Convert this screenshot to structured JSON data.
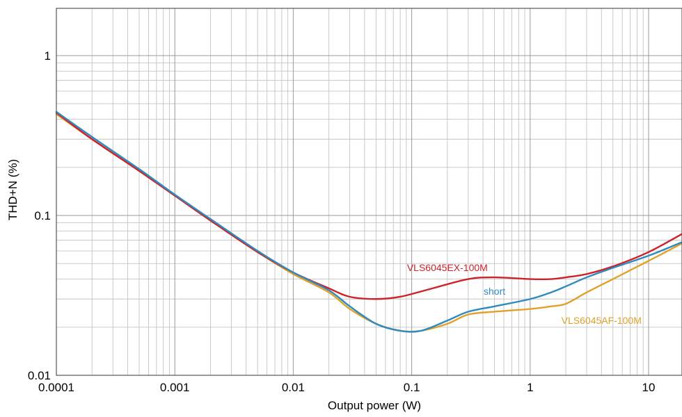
{
  "chart_data": {
    "type": "line",
    "xscale": "log",
    "yscale": "log",
    "xlim": [
      0.0001,
      20
    ],
    "ylim": [
      0.01,
      2
    ],
    "grid": true,
    "xlabel": "Output power (W)",
    "ylabel": "THD+N (%)",
    "x_ticks": [
      {
        "value": 0.0001,
        "label": "0.0001"
      },
      {
        "value": 0.001,
        "label": "0.001"
      },
      {
        "value": 0.01,
        "label": "0.01"
      },
      {
        "value": 0.1,
        "label": "0.1"
      },
      {
        "value": 1,
        "label": "1"
      },
      {
        "value": 10,
        "label": "10"
      }
    ],
    "y_ticks": [
      {
        "value": 0.01,
        "label": "0.01"
      },
      {
        "value": 0.1,
        "label": "0.1"
      },
      {
        "value": 1,
        "label": "1"
      }
    ],
    "series": [
      {
        "name": "VLS6045EX-100M",
        "color": "#cc2229",
        "label_at": [
          0.2,
          0.045
        ],
        "points": [
          [
            0.0001,
            0.44
          ],
          [
            0.0002,
            0.3
          ],
          [
            0.0005,
            0.19
          ],
          [
            0.001,
            0.133
          ],
          [
            0.002,
            0.093
          ],
          [
            0.005,
            0.059
          ],
          [
            0.01,
            0.044
          ],
          [
            0.02,
            0.035
          ],
          [
            0.03,
            0.031
          ],
          [
            0.05,
            0.03
          ],
          [
            0.08,
            0.031
          ],
          [
            0.15,
            0.035
          ],
          [
            0.3,
            0.04
          ],
          [
            0.5,
            0.041
          ],
          [
            1,
            0.04
          ],
          [
            1.5,
            0.04
          ],
          [
            2,
            0.041
          ],
          [
            3,
            0.043
          ],
          [
            5,
            0.048
          ],
          [
            10,
            0.059
          ],
          [
            20,
            0.078
          ]
        ]
      },
      {
        "name": "short",
        "color": "#2f8bbf",
        "label_at": [
          0.5,
          0.032
        ],
        "points": [
          [
            0.0001,
            0.445
          ],
          [
            0.0002,
            0.31
          ],
          [
            0.0005,
            0.195
          ],
          [
            0.001,
            0.135
          ],
          [
            0.002,
            0.095
          ],
          [
            0.005,
            0.06
          ],
          [
            0.01,
            0.044
          ],
          [
            0.02,
            0.034
          ],
          [
            0.03,
            0.027
          ],
          [
            0.05,
            0.021
          ],
          [
            0.08,
            0.019
          ],
          [
            0.12,
            0.019
          ],
          [
            0.2,
            0.022
          ],
          [
            0.3,
            0.025
          ],
          [
            0.5,
            0.027
          ],
          [
            1,
            0.03
          ],
          [
            1.5,
            0.033
          ],
          [
            2,
            0.036
          ],
          [
            3,
            0.041
          ],
          [
            5,
            0.047
          ],
          [
            10,
            0.056
          ],
          [
            20,
            0.069
          ]
        ]
      },
      {
        "name": "VLS6045AF-100M",
        "color": "#e0a12a",
        "label_at": [
          4,
          0.021
        ],
        "points": [
          [
            0.0001,
            0.43
          ],
          [
            0.0002,
            0.3
          ],
          [
            0.0005,
            0.19
          ],
          [
            0.001,
            0.133
          ],
          [
            0.002,
            0.093
          ],
          [
            0.005,
            0.059
          ],
          [
            0.01,
            0.043
          ],
          [
            0.02,
            0.033
          ],
          [
            0.03,
            0.026
          ],
          [
            0.05,
            0.021
          ],
          [
            0.08,
            0.019
          ],
          [
            0.12,
            0.019
          ],
          [
            0.2,
            0.021
          ],
          [
            0.3,
            0.024
          ],
          [
            0.5,
            0.025
          ],
          [
            1,
            0.026
          ],
          [
            1.5,
            0.027
          ],
          [
            2,
            0.028
          ],
          [
            3,
            0.033
          ],
          [
            5,
            0.04
          ],
          [
            10,
            0.052
          ],
          [
            20,
            0.068
          ]
        ]
      }
    ]
  }
}
